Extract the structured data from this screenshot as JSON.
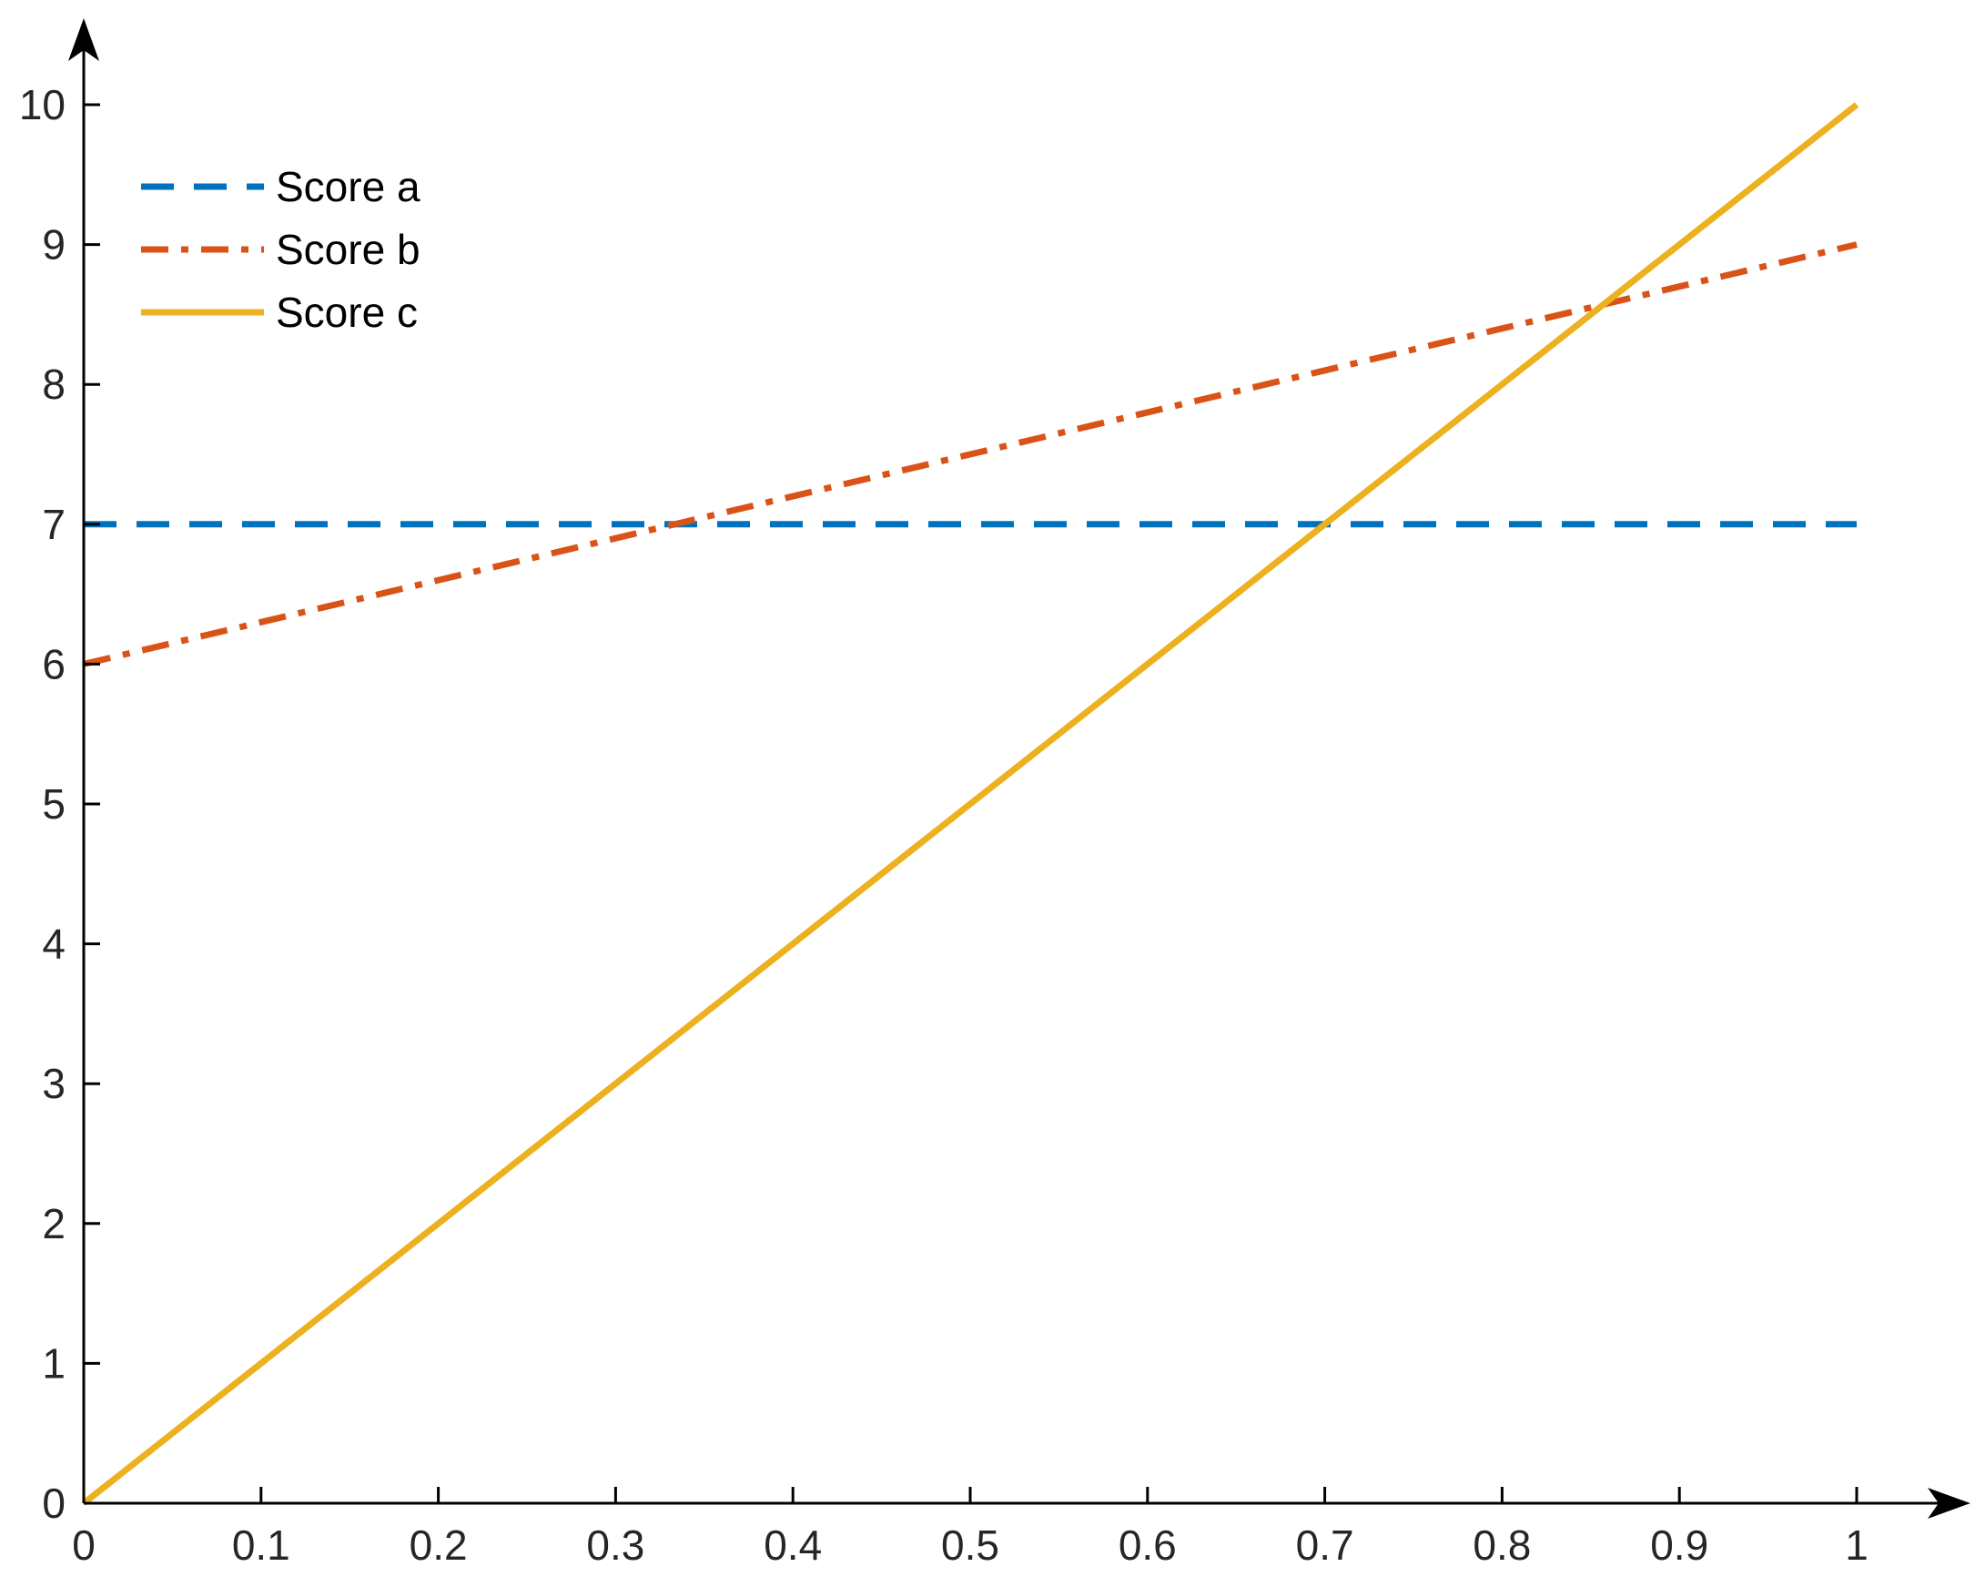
{
  "chart_data": {
    "type": "line",
    "title": "",
    "xlabel": "",
    "ylabel": "",
    "xlim": [
      0,
      1
    ],
    "ylim": [
      0,
      10
    ],
    "grid": false,
    "legend_position": "top-left",
    "x_ticks": [
      "0",
      "0.1",
      "0.2",
      "0.3",
      "0.4",
      "0.5",
      "0.6",
      "0.7",
      "0.8",
      "0.9",
      "1"
    ],
    "y_ticks": [
      "0",
      "1",
      "2",
      "3",
      "4",
      "5",
      "6",
      "7",
      "8",
      "9",
      "10"
    ],
    "series": [
      {
        "name": "Score a",
        "color": "#0072BD",
        "style": "dashed",
        "x": [
          0,
          1
        ],
        "y": [
          7,
          7
        ]
      },
      {
        "name": "Score b",
        "color": "#D95319",
        "style": "dash-dot",
        "x": [
          0,
          1
        ],
        "y": [
          6,
          9
        ]
      },
      {
        "name": "Score c",
        "color": "#EDB120",
        "style": "solid",
        "x": [
          0,
          1
        ],
        "y": [
          0,
          10
        ]
      }
    ]
  }
}
